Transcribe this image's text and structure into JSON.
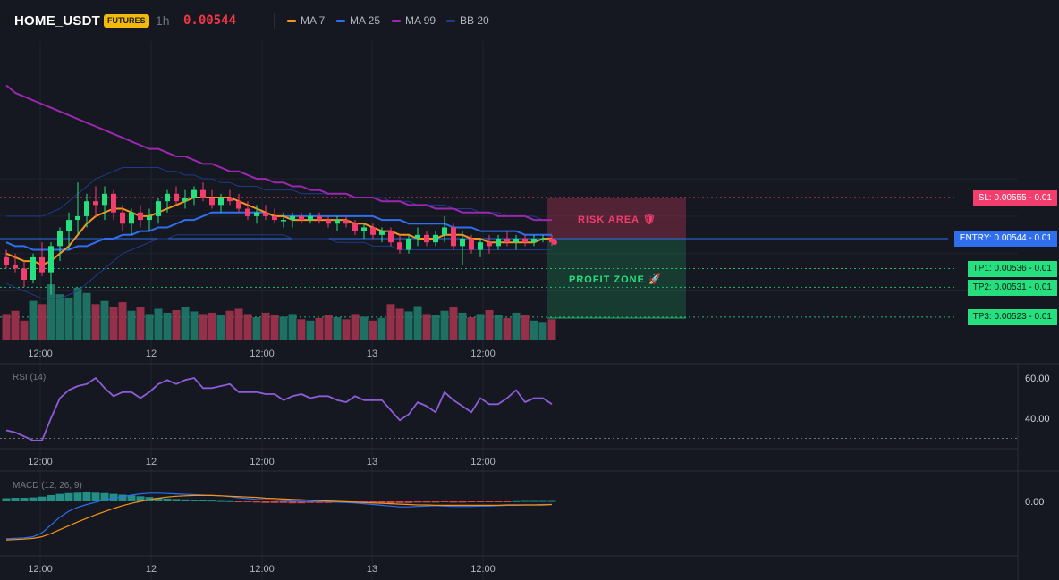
{
  "header": {
    "symbol": "HOME_USDT",
    "badge": "FUTURES",
    "timeframe": "1h",
    "price": "0.00544",
    "legend": [
      {
        "label": "MA 7",
        "color": "#f7931a"
      },
      {
        "label": "MA 25",
        "color": "#2f6fed"
      },
      {
        "label": "MA 99",
        "color": "#9c27b0"
      },
      {
        "label": "BB 20",
        "color": "#1e3a8a"
      }
    ]
  },
  "levels": {
    "sl": "SL: 0.00555 - 0.01",
    "entry": "ENTRY: 0.00544 - 0.01",
    "tp1": "TP1: 0.00536 - 0.01",
    "tp2": "TP2: 0.00531 - 0.01",
    "tp3": "TP3: 0.00523 - 0.01"
  },
  "zones": {
    "risk": "RISK AREA 🛡",
    "profit": "PROFIT ZONE 🚀"
  },
  "colors": {
    "up": "#26e07f",
    "down": "#f23d6d",
    "bg": "#151820",
    "grid": "#1f232d"
  },
  "chart_data": [
    {
      "type": "candlestick",
      "title": "HOME_USDT",
      "x_ticks": [
        "12:00",
        "12",
        "12:00",
        "13",
        "12:00"
      ],
      "ylim": [
        0.0052,
        0.00575
      ],
      "entry_price": 0.00544,
      "stop_loss": 0.00555,
      "take_profit": [
        0.00536,
        0.00531,
        0.00523
      ],
      "ohlc": [
        [
          0.00539,
          0.00541,
          0.00536,
          0.00537
        ],
        [
          0.00537,
          0.0054,
          0.00535,
          0.00536
        ],
        [
          0.00536,
          0.00538,
          0.00531,
          0.00533
        ],
        [
          0.00533,
          0.0054,
          0.00532,
          0.00539
        ],
        [
          0.00539,
          0.00543,
          0.00534,
          0.00535
        ],
        [
          0.00535,
          0.00543,
          0.00529,
          0.00542
        ],
        [
          0.00542,
          0.00547,
          0.00538,
          0.00546
        ],
        [
          0.00546,
          0.00551,
          0.00541,
          0.00549
        ],
        [
          0.00549,
          0.00559,
          0.00545,
          0.0055
        ],
        [
          0.0055,
          0.00556,
          0.00547,
          0.00554
        ],
        [
          0.00554,
          0.00558,
          0.0055,
          0.00553
        ],
        [
          0.00553,
          0.00558,
          0.00549,
          0.00556
        ],
        [
          0.00556,
          0.00557,
          0.00549,
          0.00551
        ],
        [
          0.00551,
          0.00553,
          0.00546,
          0.00548
        ],
        [
          0.00548,
          0.00552,
          0.00545,
          0.00551
        ],
        [
          0.00551,
          0.00553,
          0.00547,
          0.00549
        ],
        [
          0.00549,
          0.00552,
          0.00546,
          0.0055
        ],
        [
          0.0055,
          0.00555,
          0.00548,
          0.00554
        ],
        [
          0.00554,
          0.00557,
          0.00551,
          0.00556
        ],
        [
          0.00556,
          0.00558,
          0.00553,
          0.00554
        ],
        [
          0.00554,
          0.00557,
          0.00552,
          0.00555
        ],
        [
          0.00555,
          0.00558,
          0.00553,
          0.00557
        ],
        [
          0.00557,
          0.00559,
          0.00554,
          0.00555
        ],
        [
          0.00555,
          0.00557,
          0.00552,
          0.00553
        ],
        [
          0.00553,
          0.00556,
          0.00551,
          0.00555
        ],
        [
          0.00555,
          0.00557,
          0.00553,
          0.00554
        ],
        [
          0.00554,
          0.00556,
          0.00551,
          0.00552
        ],
        [
          0.00552,
          0.00554,
          0.00549,
          0.0055
        ],
        [
          0.0055,
          0.00553,
          0.00548,
          0.00551
        ],
        [
          0.00551,
          0.00553,
          0.00549,
          0.0055
        ],
        [
          0.0055,
          0.00552,
          0.00548,
          0.00549
        ],
        [
          0.00549,
          0.00551,
          0.00547,
          0.00549
        ],
        [
          0.00549,
          0.00551,
          0.00547,
          0.0055
        ],
        [
          0.0055,
          0.00551,
          0.00548,
          0.00549
        ],
        [
          0.00549,
          0.00551,
          0.00548,
          0.0055
        ],
        [
          0.0055,
          0.00551,
          0.00548,
          0.00549
        ],
        [
          0.00549,
          0.0055,
          0.00547,
          0.00548
        ],
        [
          0.00548,
          0.0055,
          0.00546,
          0.00549
        ],
        [
          0.00549,
          0.0055,
          0.00547,
          0.00548
        ],
        [
          0.00548,
          0.00549,
          0.00545,
          0.00546
        ],
        [
          0.00546,
          0.00548,
          0.00544,
          0.00547
        ],
        [
          0.00547,
          0.00548,
          0.00544,
          0.00545
        ],
        [
          0.00545,
          0.00547,
          0.00543,
          0.00546
        ],
        [
          0.00546,
          0.00547,
          0.00542,
          0.00543
        ],
        [
          0.00543,
          0.00545,
          0.0054,
          0.00541
        ],
        [
          0.00541,
          0.00545,
          0.0054,
          0.00544
        ],
        [
          0.00544,
          0.00547,
          0.00542,
          0.00545
        ],
        [
          0.00545,
          0.00546,
          0.00542,
          0.00543
        ],
        [
          0.00543,
          0.00546,
          0.00542,
          0.00545
        ],
        [
          0.00545,
          0.0055,
          0.00543,
          0.00547
        ],
        [
          0.00547,
          0.00548,
          0.00541,
          0.00542
        ],
        [
          0.00542,
          0.00546,
          0.00537,
          0.00544
        ],
        [
          0.00544,
          0.00545,
          0.0054,
          0.00541
        ],
        [
          0.00541,
          0.00544,
          0.00539,
          0.00543
        ],
        [
          0.00543,
          0.00545,
          0.0054,
          0.00542
        ],
        [
          0.00542,
          0.00545,
          0.00541,
          0.00544
        ],
        [
          0.00544,
          0.00546,
          0.00542,
          0.00543
        ],
        [
          0.00543,
          0.00545,
          0.00541,
          0.00544
        ],
        [
          0.00544,
          0.00545,
          0.00542,
          0.00543
        ],
        [
          0.00543,
          0.00545,
          0.00542,
          0.00544
        ],
        [
          0.00544,
          0.00545,
          0.00543,
          0.00544
        ],
        [
          0.00544,
          0.00545,
          0.00542,
          0.00543
        ]
      ],
      "volume": [
        40,
        45,
        30,
        60,
        55,
        85,
        70,
        65,
        80,
        72,
        55,
        60,
        50,
        58,
        45,
        50,
        40,
        48,
        42,
        46,
        50,
        44,
        40,
        42,
        38,
        45,
        48,
        40,
        35,
        42,
        38,
        36,
        40,
        32,
        30,
        34,
        38,
        35,
        32,
        40,
        36,
        30,
        34,
        55,
        48,
        44,
        52,
        40,
        38,
        45,
        50,
        42,
        35,
        40,
        46,
        38,
        34,
        42,
        38,
        30,
        28,
        32
      ],
      "ma7": [
        0.0054,
        0.00539,
        0.00538,
        0.00538,
        0.00537,
        0.00538,
        0.0054,
        0.00542,
        0.00545,
        0.00548,
        0.0055,
        0.00551,
        0.00552,
        0.00552,
        0.00551,
        0.0055,
        0.0055,
        0.00551,
        0.00552,
        0.00553,
        0.00554,
        0.00555,
        0.00555,
        0.00555,
        0.00555,
        0.00555,
        0.00554,
        0.00553,
        0.00552,
        0.00551,
        0.0055,
        0.0055,
        0.00549,
        0.00549,
        0.00549,
        0.00549,
        0.00549,
        0.00549,
        0.00549,
        0.00548,
        0.00548,
        0.00547,
        0.00546,
        0.00546,
        0.00545,
        0.00545,
        0.00544,
        0.00544,
        0.00544,
        0.00545,
        0.00545,
        0.00545,
        0.00544,
        0.00544,
        0.00543,
        0.00543,
        0.00543,
        0.00543,
        0.00543,
        0.00543,
        0.00544,
        0.00544
      ],
      "ma25": [
        0.00543,
        0.00542,
        0.00542,
        0.00541,
        0.00541,
        0.00541,
        0.00541,
        0.00541,
        0.00542,
        0.00542,
        0.00543,
        0.00544,
        0.00544,
        0.00545,
        0.00545,
        0.00546,
        0.00546,
        0.00547,
        0.00547,
        0.00548,
        0.00549,
        0.00549,
        0.0055,
        0.00551,
        0.00551,
        0.00551,
        0.00551,
        0.00551,
        0.00551,
        0.00551,
        0.0055,
        0.0055,
        0.0055,
        0.0055,
        0.0055,
        0.0055,
        0.0055,
        0.0055,
        0.0055,
        0.0055,
        0.0055,
        0.0055,
        0.00549,
        0.00549,
        0.00549,
        0.00548,
        0.00548,
        0.00548,
        0.00548,
        0.00548,
        0.00547,
        0.00547,
        0.00547,
        0.00546,
        0.00546,
        0.00546,
        0.00546,
        0.00546,
        0.00545,
        0.00545,
        0.00545,
        0.00545
      ],
      "ma99": [
        0.00585,
        0.00583,
        0.00582,
        0.00581,
        0.0058,
        0.00579,
        0.00578,
        0.00577,
        0.00576,
        0.00575,
        0.00574,
        0.00573,
        0.00572,
        0.00571,
        0.0057,
        0.00569,
        0.00568,
        0.00568,
        0.00567,
        0.00566,
        0.00566,
        0.00565,
        0.00564,
        0.00564,
        0.00563,
        0.00562,
        0.00562,
        0.00561,
        0.0056,
        0.0056,
        0.00559,
        0.00559,
        0.00558,
        0.00558,
        0.00557,
        0.00557,
        0.00556,
        0.00556,
        0.00556,
        0.00555,
        0.00555,
        0.00555,
        0.00554,
        0.00554,
        0.00554,
        0.00553,
        0.00553,
        0.00553,
        0.00552,
        0.00552,
        0.00552,
        0.00551,
        0.00551,
        0.00551,
        0.00551,
        0.0055,
        0.0055,
        0.0055,
        0.0055,
        0.00549,
        0.00549,
        0.00549
      ],
      "bb_upper": [
        0.0055,
        0.0055,
        0.0055,
        0.0055,
        0.0055,
        0.00551,
        0.00552,
        0.00554,
        0.00556,
        0.00558,
        0.0056,
        0.00561,
        0.00562,
        0.00563,
        0.00563,
        0.00563,
        0.00563,
        0.00563,
        0.00562,
        0.00562,
        0.00561,
        0.00561,
        0.0056,
        0.0056,
        0.00559,
        0.00559,
        0.00558,
        0.00558,
        0.00558,
        0.00557,
        0.00557,
        0.00557,
        0.00557,
        0.00556,
        0.00556,
        0.00556,
        0.00556,
        0.00556,
        0.00556,
        0.00555,
        0.00555,
        0.00555,
        0.00555,
        0.00554,
        0.00554,
        0.00554,
        0.00553,
        0.00553,
        0.00553,
        0.00553,
        0.00552,
        0.00552,
        0.00552,
        0.00551,
        0.00551,
        0.00551,
        0.0055,
        0.0055,
        0.0055,
        0.0055,
        0.00549,
        0.00549
      ],
      "bb_lower": [
        0.00532,
        0.00531,
        0.0053,
        0.00529,
        0.00528,
        0.00528,
        0.00528,
        0.00529,
        0.0053,
        0.00532,
        0.00534,
        0.00536,
        0.00538,
        0.0054,
        0.00541,
        0.00542,
        0.00543,
        0.00544,
        0.00544,
        0.00545,
        0.00545,
        0.00545,
        0.00545,
        0.00545,
        0.00545,
        0.00545,
        0.00545,
        0.00545,
        0.00545,
        0.00545,
        0.00545,
        0.00545,
        0.00544,
        0.00544,
        0.00544,
        0.00544,
        0.00544,
        0.00543,
        0.00543,
        0.00543,
        0.00543,
        0.00542,
        0.00542,
        0.00542,
        0.00541,
        0.00541,
        0.00541,
        0.00541,
        0.00541,
        0.00541,
        0.00541,
        0.00541,
        0.00541,
        0.00541,
        0.00541,
        0.00541,
        0.00541,
        0.00541,
        0.00541,
        0.00541,
        0.00541,
        0.00541
      ]
    },
    {
      "type": "line",
      "title": "RSI (14)",
      "y_ticks": [
        "60.00",
        "40.00"
      ],
      "ylim": [
        20,
        68
      ],
      "threshold": 30,
      "values": [
        34,
        33,
        31,
        29,
        29,
        40,
        50,
        54,
        56,
        57,
        60,
        55,
        51,
        53,
        53,
        50,
        53,
        57,
        59,
        57,
        59,
        60,
        55,
        55,
        56,
        57,
        53,
        53,
        53,
        52,
        52,
        49,
        51,
        52,
        50,
        51,
        51,
        49,
        48,
        51,
        49,
        49,
        49,
        44,
        39,
        42,
        48,
        46,
        43,
        53,
        49,
        46,
        43,
        50,
        47,
        47,
        50,
        54,
        48,
        50,
        50,
        47
      ]
    },
    {
      "type": "bar",
      "title": "MACD (12, 26, 9)",
      "y_ticks": [
        "0.00"
      ],
      "ylim": [
        -0.00012,
        6e-05
      ],
      "histogram": [
        8e-06,
        9e-06,
        9e-06,
        1e-05,
        1.2e-05,
        1.6e-05,
        1.9e-05,
        2.1e-05,
        2.2e-05,
        2.3e-05,
        2.2e-05,
        2.1e-05,
        1.9e-05,
        1.7e-05,
        1.5e-05,
        1.3e-05,
        1.1e-05,
        9e-06,
        7e-06,
        6e-06,
        5e-06,
        4e-06,
        3e-06,
        2e-06,
        1e-06,
        5e-07,
        -1e-06,
        -2e-06,
        -3e-06,
        -4e-06,
        -4e-06,
        -4e-06,
        -5e-06,
        -5e-06,
        -4e-06,
        -4e-06,
        -4e-06,
        -3e-06,
        -3e-06,
        -4e-06,
        -4e-06,
        -4e-06,
        -5e-06,
        -5e-06,
        -4e-06,
        -4e-06,
        -3e-06,
        -3e-06,
        -3e-06,
        -2e-06,
        -3e-06,
        -3e-06,
        -2e-06,
        -2e-06,
        -1e-06,
        -1e-06,
        -5e-07,
        5e-07,
        1e-06,
        1e-06,
        1e-06,
        1e-06
      ],
      "macd": [
        -9.5e-05,
        -9.4e-05,
        -9.3e-05,
        -9e-05,
        -8e-05,
        -6e-05,
        -4e-05,
        -2.5e-05,
        -1.5e-05,
        -8e-06,
        -2e-06,
        4e-06,
        8e-06,
        1.2e-05,
        1.6e-05,
        1.9e-05,
        2.1e-05,
        2.1e-05,
        2e-05,
        1.9e-05,
        1.8e-05,
        1.7e-05,
        1.6e-05,
        1.5e-05,
        1.4e-05,
        1.2e-05,
        9e-06,
        7e-06,
        5e-06,
        4e-06,
        3e-06,
        2e-06,
        1e-06,
        5e-07,
        0.0,
        -5e-07,
        -1e-06,
        -2e-06,
        -3e-06,
        -4e-06,
        -6e-06,
        -8e-06,
        -1e-05,
        -1.2e-05,
        -1.4e-05,
        -1.4e-05,
        -1.3e-05,
        -1.2e-05,
        -1.1e-05,
        -1.2e-05,
        -1.3e-05,
        -1.3e-05,
        -1.3e-05,
        -1.2e-05,
        -1.2e-05,
        -1.1e-05,
        -1e-05,
        -1e-05,
        -9e-06,
        -9e-06,
        -8e-06,
        -8e-06
      ],
      "signal": [
        -9.8e-05,
        -9.7e-05,
        -9.6e-05,
        -9.4e-05,
        -9e-05,
        -8.2e-05,
        -7.2e-05,
        -6.2e-05,
        -5.2e-05,
        -4.3e-05,
        -3.4e-05,
        -2.6e-05,
        -1.8e-05,
        -1.1e-05,
        -5e-06,
        0.0,
        4e-06,
        8e-06,
        1.1e-05,
        1.3e-05,
        1.4e-05,
        1.5e-05,
        1.5e-05,
        1.5e-05,
        1.4e-05,
        1.3e-05,
        1.2e-05,
        1.1e-05,
        1e-05,
        8e-06,
        7e-06,
        6e-06,
        5e-06,
        4e-06,
        3e-06,
        2e-06,
        1e-06,
        0.0,
        -1e-06,
        -2e-06,
        -3e-06,
        -4e-06,
        -5e-06,
        -6e-06,
        -7e-06,
        -8e-06,
        -9e-06,
        -9e-06,
        -1e-05,
        -1e-05,
        -1e-05,
        -1e-05,
        -1e-05,
        -1e-05,
        -1e-05,
        -1e-05,
        -9e-06,
        -9e-06,
        -9e-06,
        -9e-06,
        -9e-06,
        -8e-06
      ]
    }
  ]
}
